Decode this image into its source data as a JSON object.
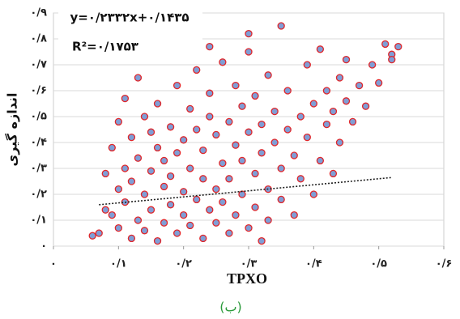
{
  "chart_data": {
    "type": "scatter",
    "xlabel": "TPXO",
    "ylabel": "اندازه گیری",
    "caption": "(ب)",
    "color": "#7f9ed6",
    "edge_color": "#e0262a",
    "xlim": [
      0,
      0.6
    ],
    "ylim": [
      0,
      0.9
    ],
    "xticks": [
      {
        "value": 0,
        "label": "۰"
      },
      {
        "value": 0.1,
        "label": "۰/۱"
      },
      {
        "value": 0.2,
        "label": "۰/۲"
      },
      {
        "value": 0.3,
        "label": "۰/۳"
      },
      {
        "value": 0.4,
        "label": "۰/۴"
      },
      {
        "value": 0.5,
        "label": "۰/۵"
      },
      {
        "value": 0.6,
        "label": "۰/۶"
      }
    ],
    "yticks": [
      {
        "value": 0,
        "label": "۰"
      },
      {
        "value": 0.1,
        "label": "۰/۱"
      },
      {
        "value": 0.2,
        "label": "۰/۲"
      },
      {
        "value": 0.3,
        "label": "۰/۳"
      },
      {
        "value": 0.4,
        "label": "۰/۴"
      },
      {
        "value": 0.5,
        "label": "۰/۵"
      },
      {
        "value": 0.6,
        "label": "۰/۶"
      },
      {
        "value": 0.7,
        "label": "۰/۷"
      },
      {
        "value": 0.8,
        "label": "۰/۸"
      },
      {
        "value": 0.9,
        "label": "۰/۹"
      }
    ],
    "grid": true,
    "trendline": {
      "label": "y=۰/۲۳۳۲x+۰/۱۴۳۵",
      "slope": 0.2332,
      "intercept": 0.1435,
      "x_range": [
        0.07,
        0.52
      ]
    },
    "r2_label": "R²=۰/۱۷۵۳",
    "x": [
      0.06,
      0.07,
      0.08,
      0.08,
      0.09,
      0.09,
      0.1,
      0.1,
      0.1,
      0.11,
      0.11,
      0.11,
      0.12,
      0.12,
      0.12,
      0.13,
      0.13,
      0.13,
      0.14,
      0.14,
      0.14,
      0.15,
      0.15,
      0.15,
      0.16,
      0.16,
      0.16,
      0.17,
      0.17,
      0.17,
      0.18,
      0.18,
      0.18,
      0.19,
      0.19,
      0.19,
      0.2,
      0.2,
      0.2,
      0.21,
      0.21,
      0.21,
      0.22,
      0.22,
      0.22,
      0.23,
      0.23,
      0.23,
      0.24,
      0.24,
      0.24,
      0.25,
      0.25,
      0.25,
      0.26,
      0.26,
      0.26,
      0.27,
      0.27,
      0.27,
      0.28,
      0.28,
      0.28,
      0.29,
      0.29,
      0.29,
      0.3,
      0.3,
      0.3,
      0.31,
      0.31,
      0.31,
      0.32,
      0.32,
      0.32,
      0.33,
      0.33,
      0.33,
      0.34,
      0.34,
      0.35,
      0.35,
      0.35,
      0.36,
      0.36,
      0.37,
      0.37,
      0.38,
      0.38,
      0.39,
      0.39,
      0.4,
      0.4,
      0.41,
      0.41,
      0.42,
      0.42,
      0.43,
      0.43,
      0.44,
      0.44,
      0.45,
      0.45,
      0.46,
      0.47,
      0.48,
      0.49,
      0.5,
      0.51,
      0.52,
      0.53,
      0.52,
      0.3,
      0.24
    ],
    "values": [
      0.04,
      0.05,
      0.14,
      0.28,
      0.12,
      0.38,
      0.22,
      0.07,
      0.48,
      0.3,
      0.17,
      0.57,
      0.03,
      0.42,
      0.25,
      0.34,
      0.1,
      0.65,
      0.2,
      0.5,
      0.06,
      0.29,
      0.44,
      0.14,
      0.38,
      0.02,
      0.55,
      0.23,
      0.33,
      0.09,
      0.46,
      0.16,
      0.27,
      0.05,
      0.36,
      0.62,
      0.12,
      0.41,
      0.21,
      0.53,
      0.08,
      0.3,
      0.18,
      0.45,
      0.68,
      0.03,
      0.26,
      0.37,
      0.14,
      0.5,
      0.59,
      0.22,
      0.09,
      0.43,
      0.32,
      0.71,
      0.17,
      0.48,
      0.05,
      0.26,
      0.39,
      0.62,
      0.12,
      0.2,
      0.54,
      0.33,
      0.07,
      0.44,
      0.75,
      0.28,
      0.58,
      0.15,
      0.02,
      0.36,
      0.47,
      0.22,
      0.66,
      0.1,
      0.4,
      0.52,
      0.3,
      0.18,
      0.85,
      0.45,
      0.6,
      0.12,
      0.35,
      0.5,
      0.26,
      0.7,
      0.42,
      0.2,
      0.55,
      0.33,
      0.76,
      0.47,
      0.6,
      0.28,
      0.52,
      0.65,
      0.4,
      0.56,
      0.72,
      0.48,
      0.62,
      0.54,
      0.7,
      0.63,
      0.78,
      0.74,
      0.77,
      0.72,
      0.82,
      0.77
    ]
  }
}
